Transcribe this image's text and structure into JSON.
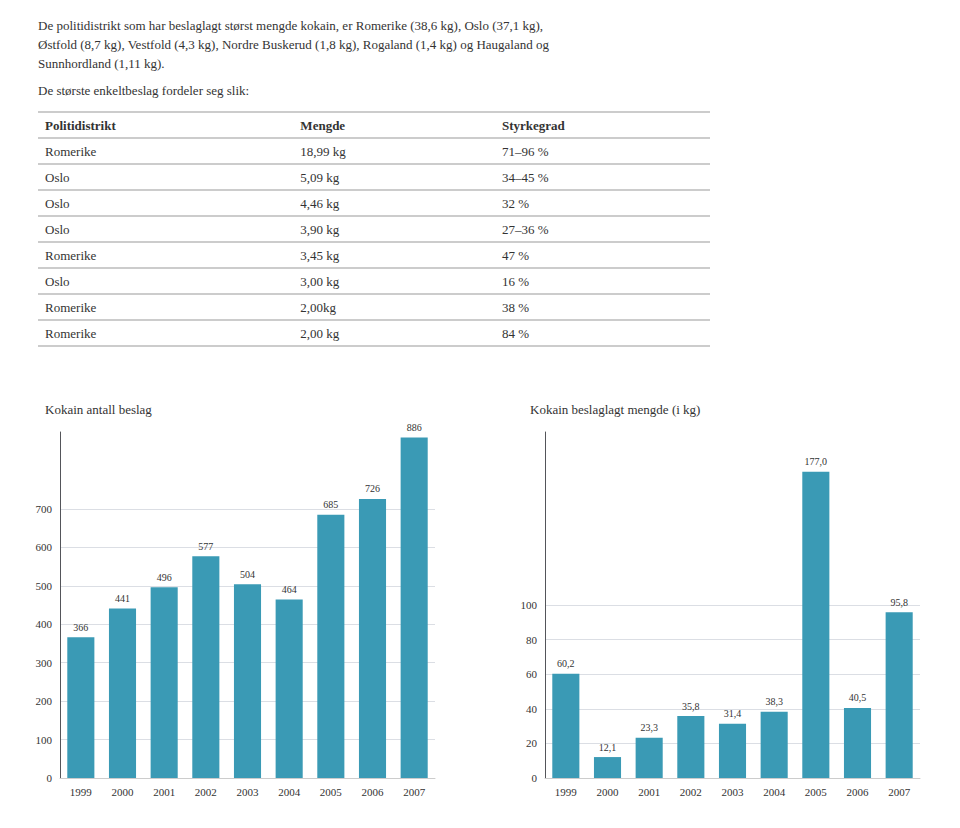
{
  "intro_text": "De politidistrikt som har beslaglagt størst mengde kokain, er Romerike (38,6 kg), Oslo (37,1 kg),\nØstfold (8,7 kg), Vestfold (4,3 kg), Nordre Buskerud (1,8 kg), Rogaland (1,4 kg) og Haugaland og\nSunnhordland (1,11 kg).",
  "subtitle": "De største enkeltbeslag fordeler seg slik:",
  "table": {
    "headers": [
      "Politidistrikt",
      "Mengde",
      "Styrkegrad"
    ],
    "rows": [
      [
        "Romerike",
        "18,99 kg",
        "71–96 %"
      ],
      [
        "Oslo",
        "5,09 kg",
        "34–45 %"
      ],
      [
        "Oslo",
        "4,46 kg",
        "32 %"
      ],
      [
        "Oslo",
        "3,90 kg",
        "27–36 %"
      ],
      [
        "Romerike",
        "3,45 kg",
        "47 %"
      ],
      [
        "Oslo",
        "3,00 kg",
        "16 %"
      ],
      [
        "Romerike",
        "2,00kg",
        "38 %"
      ],
      [
        "Romerike",
        "2,00 kg",
        "84 %"
      ]
    ]
  },
  "chart_data": [
    {
      "type": "bar",
      "title": "Kokain antall beslag",
      "categories": [
        "1999",
        "2000",
        "2001",
        "2002",
        "2003",
        "2004",
        "2005",
        "2006",
        "2007"
      ],
      "values": [
        366,
        441,
        496,
        577,
        504,
        464,
        685,
        726,
        886
      ],
      "color": "#3a9ab5",
      "ylim": [
        0,
        900
      ],
      "yticks": [
        0,
        100,
        200,
        300,
        400,
        500,
        600,
        700
      ],
      "grid": true,
      "data_labels": true
    },
    {
      "type": "bar",
      "title": "Kokain beslaglagt mengde (i kg)",
      "categories": [
        "1999",
        "2000",
        "2001",
        "2002",
        "2003",
        "2004",
        "2005",
        "2006",
        "2007"
      ],
      "values": [
        60.2,
        12.1,
        23.3,
        35.8,
        31.4,
        38.3,
        177.0,
        40.5,
        95.8
      ],
      "value_labels": [
        "60,2",
        "12,1",
        "23,3",
        "35,8",
        "31,4",
        "38,3",
        "177,0",
        "40,5",
        "95,8"
      ],
      "color": "#3a9ab5",
      "ylim": [
        0,
        200
      ],
      "yticks": [
        0,
        20,
        40,
        60,
        80,
        100
      ],
      "grid": true,
      "data_labels": true
    }
  ]
}
